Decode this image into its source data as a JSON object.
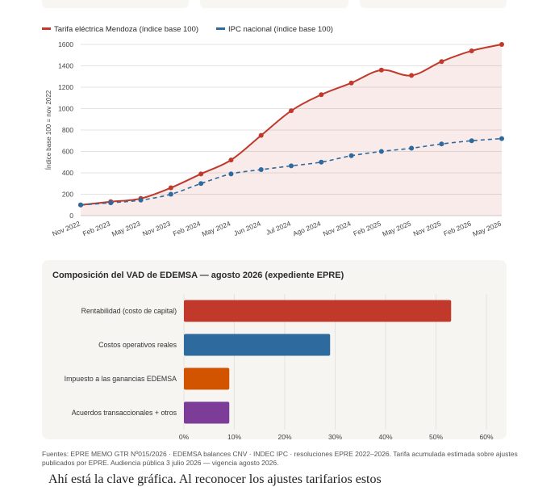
{
  "chart_data": [
    {
      "type": "line",
      "title": "",
      "ylabel": "Índice base 100 = nov 2022",
      "xlabel": "",
      "ylim": [
        0,
        1600
      ],
      "yticks": [
        0,
        200,
        400,
        600,
        800,
        1000,
        1200,
        1400,
        1600
      ],
      "legend_position": "top-left",
      "grid": true,
      "x_tick_labels": [
        "Nov 2022",
        "Feb 2023",
        "May 2023",
        "Nov 2023",
        "Feb 2024",
        "May 2024",
        "Jun 2024",
        "Jul 2024",
        "Ago 2024",
        "Nov 2024",
        "Feb 2025",
        "May 2025",
        "Nov 2025",
        "Feb 2026",
        "May 2026"
      ],
      "x": [
        "Nov 2022",
        "Feb 2023",
        "May 2023",
        "Nov 2023",
        "Feb 2024",
        "May 2024",
        "Jun 2024",
        "Jul 2024",
        "Ago 2024",
        "Nov 2024",
        "Feb 2025",
        "May 2025",
        "Nov 2025",
        "Feb 2026",
        "May 2026"
      ],
      "series": [
        {
          "name": "Tarifa eléctrica Mendoza (índice base 100)",
          "color": "#c0392b",
          "style": "solid",
          "fill": true,
          "values": [
            100,
            130,
            160,
            260,
            390,
            520,
            750,
            980,
            1130,
            1240,
            1360,
            1310,
            1440,
            1540,
            1600
          ]
        },
        {
          "name": "IPC nacional (índice base 100)",
          "color": "#2e6a9e",
          "style": "dashed",
          "fill": false,
          "values": [
            100,
            120,
            145,
            200,
            300,
            390,
            430,
            465,
            500,
            560,
            600,
            630,
            670,
            700,
            720
          ]
        }
      ]
    },
    {
      "type": "bar",
      "orientation": "horizontal",
      "title": "Composición del VAD de EDEMSA — agosto 2026 (expediente EPRE)",
      "categories": [
        "Rentabilidad (costo de capital)",
        "Costos operativos reales",
        "Impuesto a las ganancias EDEMSA",
        "Acuerdos transaccionales + otros"
      ],
      "values": [
        53,
        29,
        9,
        9
      ],
      "colors": [
        "#c0392b",
        "#2e6a9e",
        "#d35400",
        "#7d3c98"
      ],
      "unit": "%",
      "xlim": [
        0,
        60
      ],
      "xticks": [
        "0%",
        "10%",
        "20%",
        "30%",
        "40%",
        "50%",
        "60%"
      ],
      "grid": true
    }
  ],
  "sources_text": "Fuentes: EPRE MEMO GTR Nº015/2026 · EDEMSA balances CNV · INDEC IPC · resoluciones EPRE 2022–2026. Tarifa acumulada estimada sobre ajustes publicados por EPRE. Audiencia pública 3 julio 2026 — vigencia agosto 2026.",
  "cut_text": "Ahí está la clave gráfica. Al reconocer los ajustes tarifarios estos"
}
